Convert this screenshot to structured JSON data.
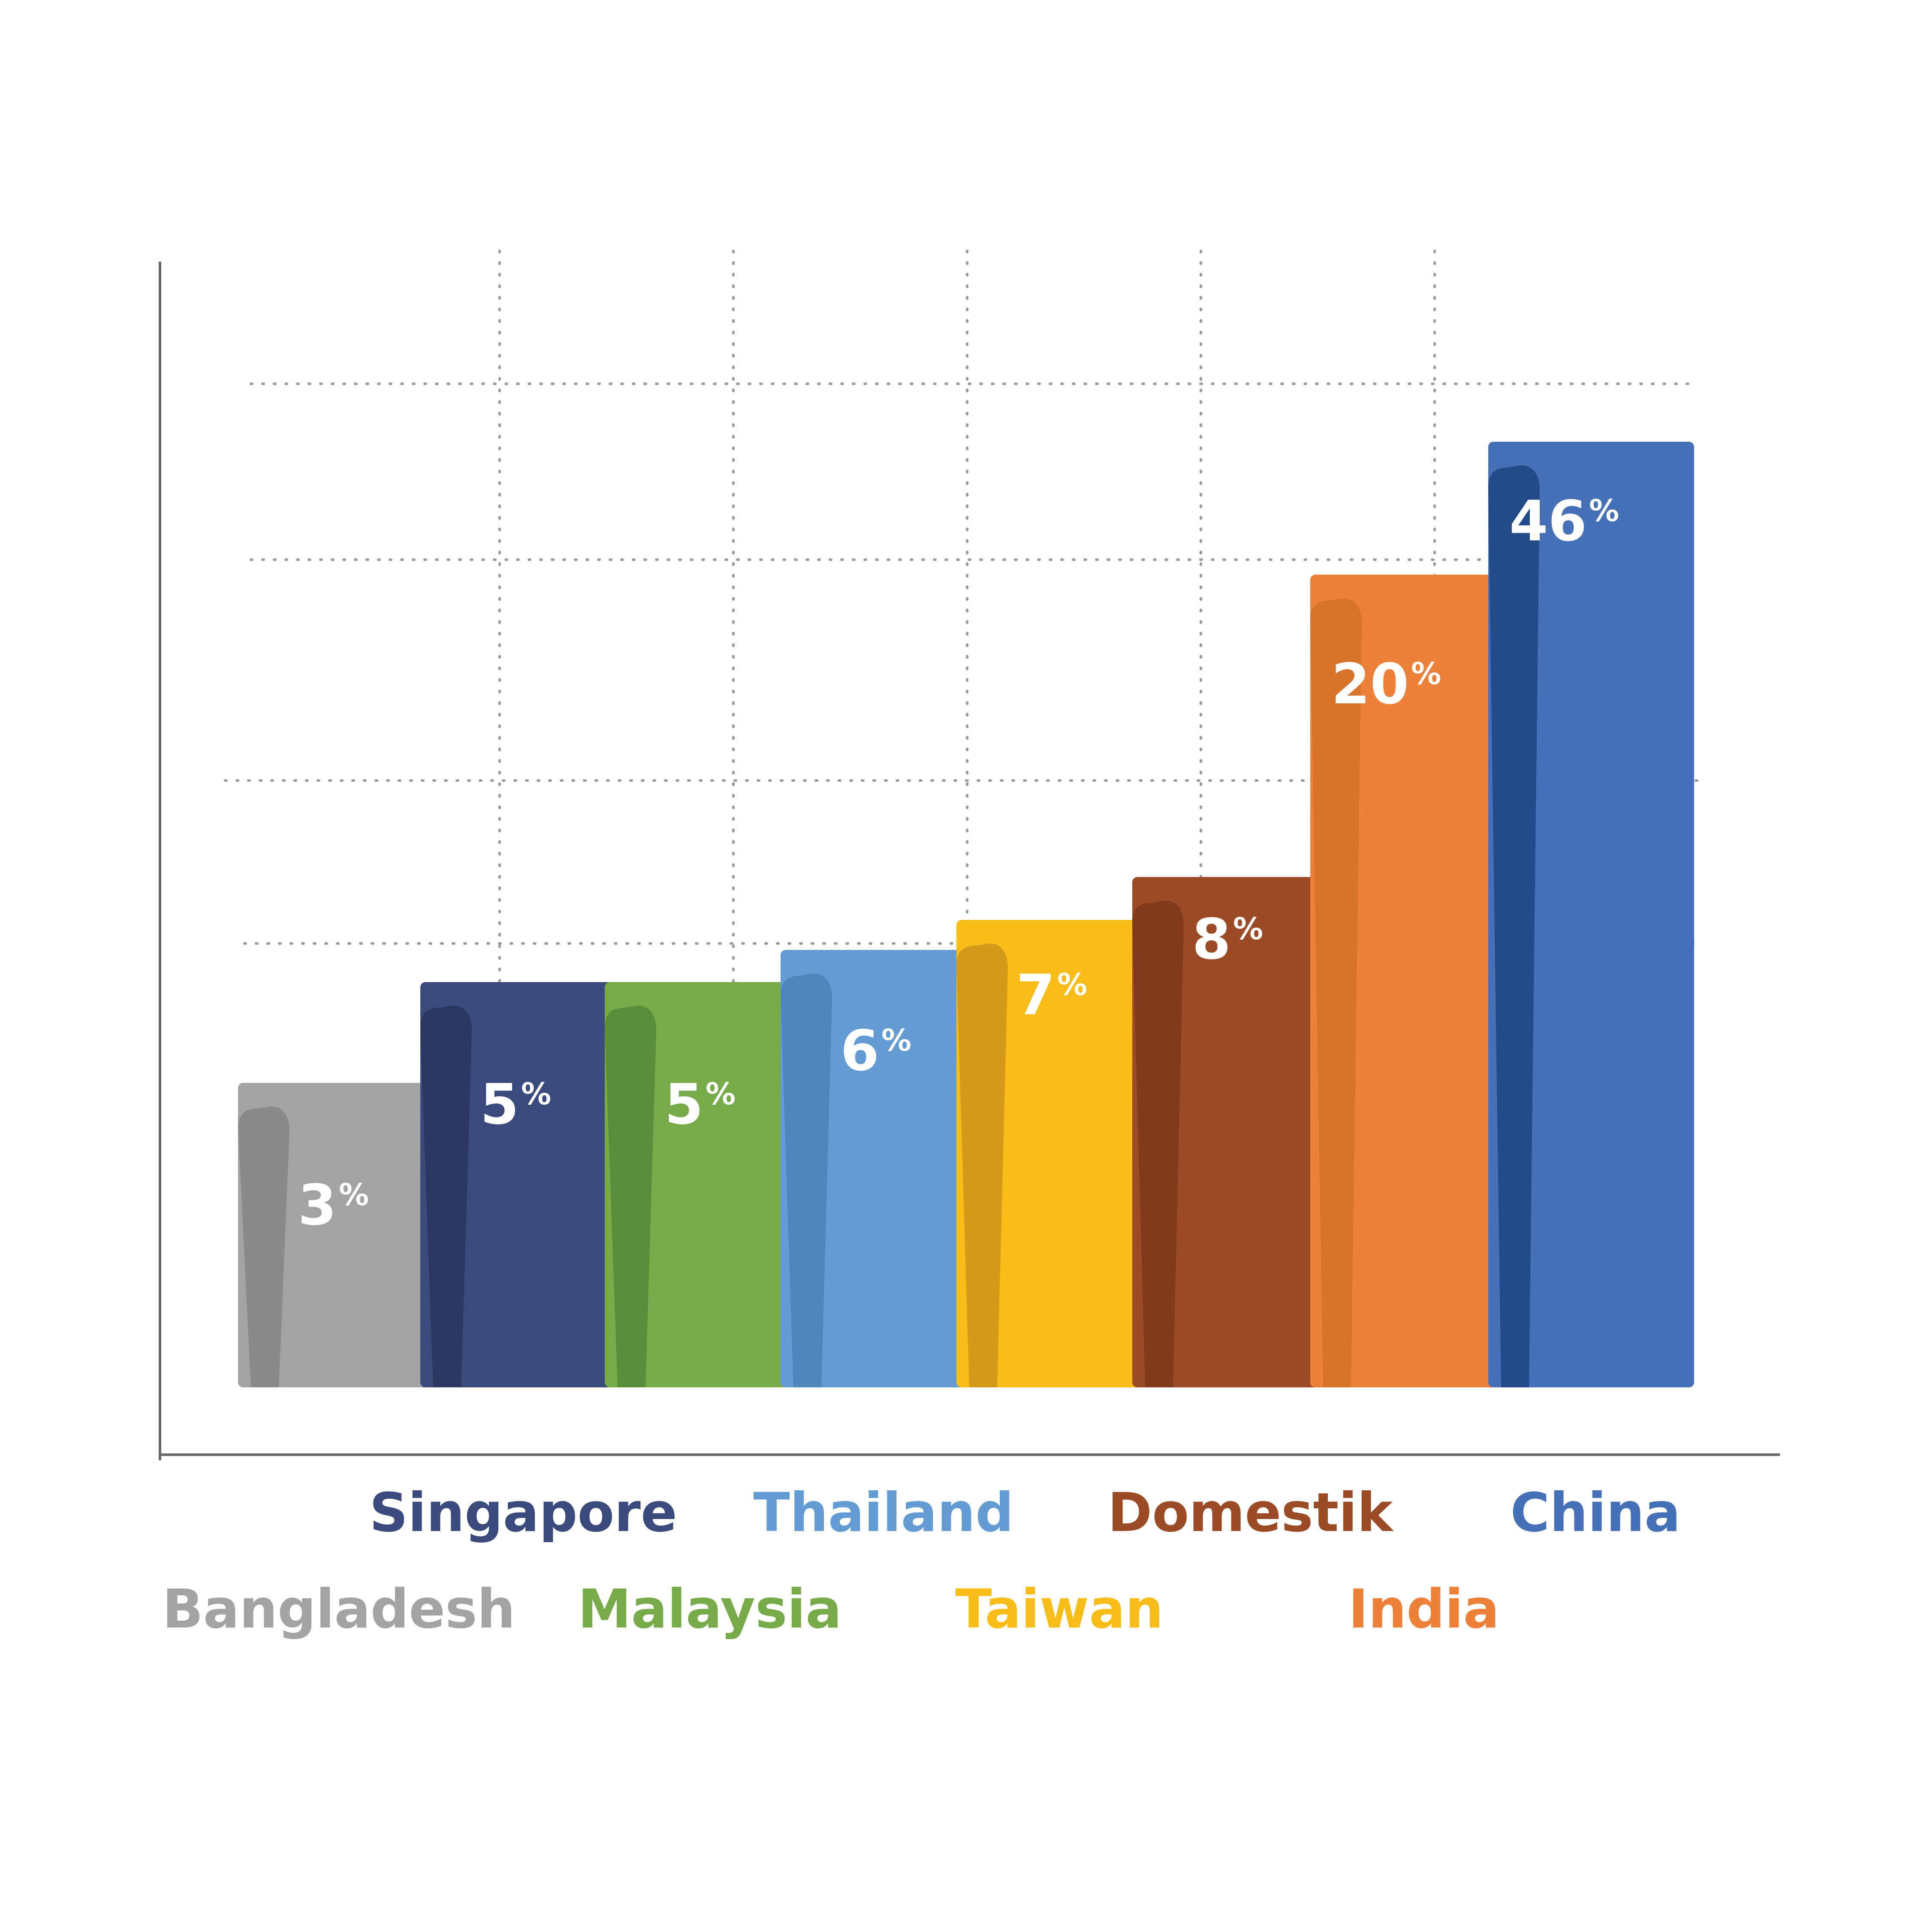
{
  "chart_data": {
    "type": "bar",
    "title": "",
    "xlabel": "",
    "ylabel": "",
    "grid": true,
    "value_suffix": "%",
    "categories": [
      "Bangladesh",
      "Singapore",
      "Malaysia",
      "Thailand",
      "Taiwan",
      "Domestik",
      "India",
      "China"
    ],
    "values": [
      3,
      5,
      5,
      6,
      7,
      8,
      20,
      46
    ],
    "value_labels": [
      "3",
      "5",
      "5",
      "6",
      "7",
      "8",
      "20",
      "46"
    ],
    "colors": [
      "#a3a3a3",
      "#3a4a7c",
      "#77aa48",
      "#629cd2",
      "#f8bd17",
      "#9b4b25",
      "#ee813a",
      "#4671b6"
    ],
    "shade_colors": [
      "#8a8a8a",
      "#2b375f",
      "#5a8d3a",
      "#4e86bb",
      "#d49a1a",
      "#823a1d",
      "#d8732a",
      "#234b89"
    ],
    "label_rows": [
      "bottom",
      "top",
      "bottom",
      "top",
      "bottom",
      "top",
      "bottom",
      "top"
    ]
  }
}
